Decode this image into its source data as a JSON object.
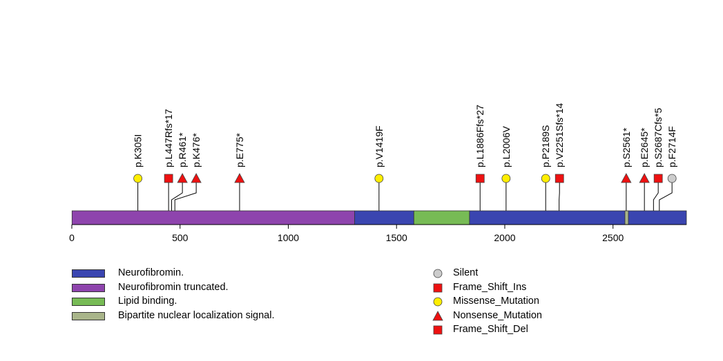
{
  "chart_data": {
    "type": "lollipop",
    "protein_length": 2839,
    "axis": {
      "ticks": [
        0,
        500,
        1000,
        1500,
        2000,
        2500
      ],
      "xlim": [
        0,
        2839
      ]
    },
    "domains": [
      {
        "name": "Neurofibromin truncated.",
        "start": 1,
        "end": 1306,
        "color": "#8e44ad"
      },
      {
        "name": "Neurofibromin.",
        "start": 1306,
        "end": 1580,
        "color": "#3a45b0"
      },
      {
        "name": "Lipid binding.",
        "start": 1580,
        "end": 1837,
        "color": "#77bb55"
      },
      {
        "name": "Neurofibromin.",
        "start": 1837,
        "end": 2839,
        "color": "#3a45b0"
      },
      {
        "name": "Bipartite nuclear localization signal.",
        "start": 2555,
        "end": 2571,
        "color": "#a9b58a"
      }
    ],
    "mutations": [
      {
        "label": "p.K305I",
        "position": 305,
        "type": "Missense_Mutation"
      },
      {
        "label": "p.L447Rfs*17",
        "position": 447,
        "type": "Frame_Shift_Ins"
      },
      {
        "label": "p.R461*",
        "position": 461,
        "type": "Nonsense_Mutation"
      },
      {
        "label": "p.K476*",
        "position": 476,
        "type": "Nonsense_Mutation"
      },
      {
        "label": "p.E775*",
        "position": 775,
        "type": "Nonsense_Mutation"
      },
      {
        "label": "p.V1419F",
        "position": 1419,
        "type": "Missense_Mutation"
      },
      {
        "label": "p.L1886Ffs*27",
        "position": 1886,
        "type": "Frame_Shift_Ins"
      },
      {
        "label": "p.L2006V",
        "position": 2006,
        "type": "Missense_Mutation"
      },
      {
        "label": "p.P2189S",
        "position": 2189,
        "type": "Missense_Mutation"
      },
      {
        "label": "p.V2251Sfs*14",
        "position": 2251,
        "type": "Frame_Shift_Del"
      },
      {
        "label": "p.S2561*",
        "position": 2561,
        "type": "Nonsense_Mutation"
      },
      {
        "label": "p.E2645*",
        "position": 2645,
        "type": "Nonsense_Mutation"
      },
      {
        "label": "p.S2687Cfs*5",
        "position": 2687,
        "type": "Frame_Shift_Del"
      },
      {
        "label": "p.F2714F",
        "position": 2714,
        "type": "Silent"
      }
    ],
    "domain_legend": [
      {
        "label": "Neurofibromin.",
        "color": "#3a45b0"
      },
      {
        "label": "Neurofibromin truncated.",
        "color": "#8e44ad"
      },
      {
        "label": "Lipid binding.",
        "color": "#77bb55"
      },
      {
        "label": "Bipartite nuclear localization signal.",
        "color": "#a9b58a"
      }
    ],
    "mutation_legend": [
      {
        "label": "Silent",
        "shape": "circle",
        "color": "#cccccc"
      },
      {
        "label": "Frame_Shift_Ins",
        "shape": "square",
        "color": "#ee1111"
      },
      {
        "label": "Missense_Mutation",
        "shape": "circle",
        "color": "#ffee00"
      },
      {
        "label": "Nonsense_Mutation",
        "shape": "triangle",
        "color": "#ee1111"
      },
      {
        "label": "Frame_Shift_Del",
        "shape": "square",
        "color": "#ee1111"
      }
    ]
  }
}
